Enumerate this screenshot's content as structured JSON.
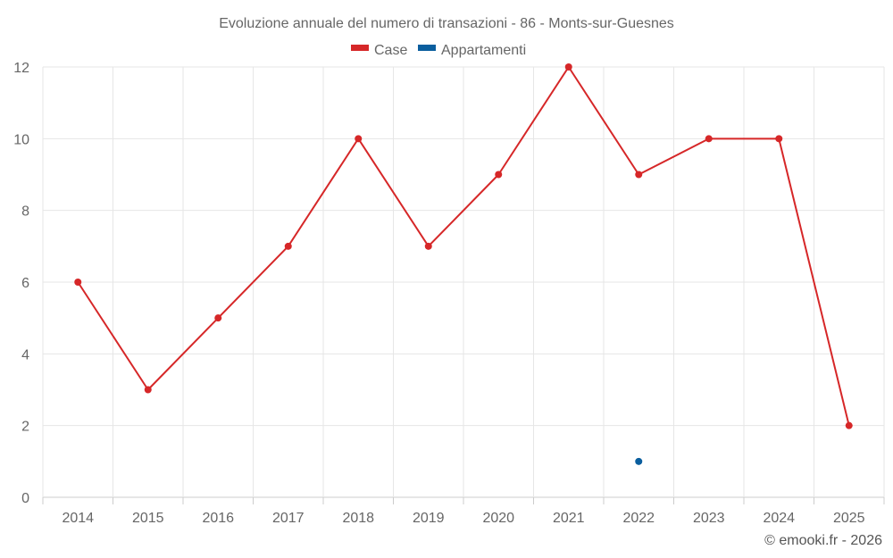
{
  "chart_data": {
    "type": "line",
    "title": "Evoluzione annuale del numero di transazioni - 86 - Monts-sur-Guesnes",
    "categories": [
      "2014",
      "2015",
      "2016",
      "2017",
      "2018",
      "2019",
      "2020",
      "2021",
      "2022",
      "2023",
      "2024",
      "2025"
    ],
    "series": [
      {
        "name": "Case",
        "color": "#d62728",
        "values": [
          6,
          3,
          5,
          7,
          10,
          7,
          9,
          12,
          9,
          10,
          10,
          2
        ]
      },
      {
        "name": "Appartamenti",
        "color": "#0a5e9e",
        "values": [
          null,
          null,
          null,
          null,
          null,
          null,
          null,
          null,
          1,
          null,
          null,
          null
        ]
      }
    ],
    "ylim": [
      0,
      12
    ],
    "yticks": [
      "0",
      "2",
      "4",
      "6",
      "8",
      "10",
      "12"
    ],
    "ytick_values": [
      0,
      2,
      4,
      6,
      8,
      10,
      12
    ],
    "grid": true,
    "legend": "top-center",
    "xlabel": "",
    "ylabel": ""
  },
  "credit": "© emooki.fr - 2026"
}
